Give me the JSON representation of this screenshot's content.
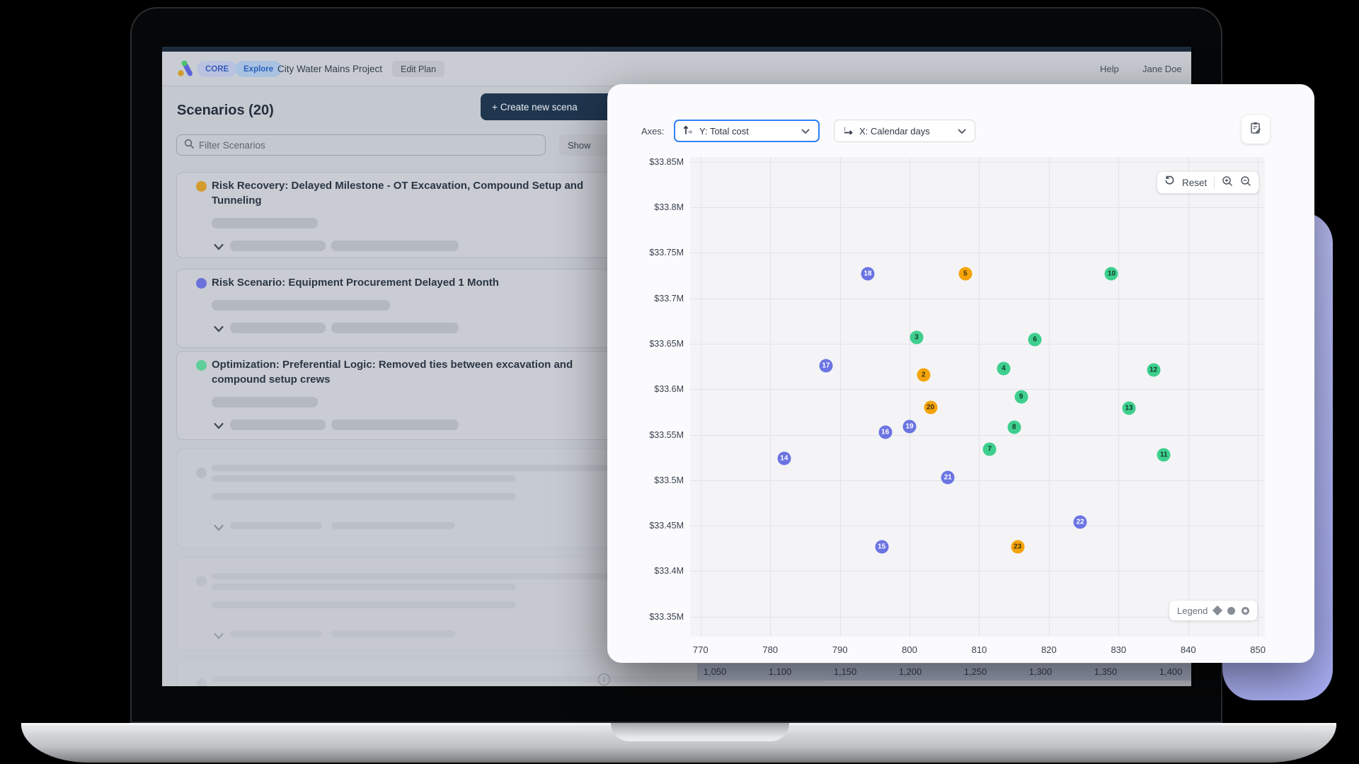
{
  "nav": {
    "core_badge": "CORE",
    "explore_badge": "Explore",
    "project_title": "City Water Mains Project",
    "edit_plan_label": "Edit Plan",
    "help_label": "Help",
    "user_name": "Jane Doe"
  },
  "scenarios_panel": {
    "title": "Scenarios (20)",
    "create_button_label": "Create new scena",
    "filter_placeholder": "Filter Scenarios",
    "show_button_label": "Show",
    "items": [
      {
        "dot_color": "#d49b2e",
        "type": "risk-recovery",
        "title": "Risk Recovery: Delayed Milestone - OT Excavation, Compound Setup and Tunneling",
        "lines": 2
      },
      {
        "dot_color": "#6a71da",
        "type": "risk-scenario",
        "title": "Risk Scenario: Equipment Procurement Delayed 1 Month",
        "lines": 1
      },
      {
        "dot_color": "#5ecf99",
        "type": "optimization",
        "title": "Optimization: Preferential Logic: Removed ties between excavation and compound setup crews",
        "lines": 2
      }
    ],
    "skeleton_cards": 3
  },
  "chart_panel": {
    "axes_label": "Axes:",
    "y_selector_value": "Y: Total cost",
    "x_selector_value": "X: Calendar days",
    "reset_label": "Reset",
    "legend_label": "Legend",
    "accent_blue": "#2f80f8"
  },
  "background_axis_labels": [
    "1,050",
    "1,100",
    "1,150",
    "1,200",
    "1,250",
    "1,300",
    "1,350",
    "1,400"
  ],
  "chart_data": {
    "type": "scatter",
    "xlabel": "Calendar days",
    "ylabel": "Total cost",
    "x_ticks": [
      770,
      780,
      790,
      800,
      810,
      820,
      830,
      840,
      850
    ],
    "y_ticks": [
      {
        "v": 33.85,
        "label": "$33.85M"
      },
      {
        "v": 33.8,
        "label": "$33.8M"
      },
      {
        "v": 33.75,
        "label": "$33.75M"
      },
      {
        "v": 33.7,
        "label": "$33.7M"
      },
      {
        "v": 33.65,
        "label": "$33.65M"
      },
      {
        "v": 33.6,
        "label": "$33.6M"
      },
      {
        "v": 33.55,
        "label": "$33.55M"
      },
      {
        "v": 33.5,
        "label": "$33.5M"
      },
      {
        "v": 33.45,
        "label": "$33.45M"
      },
      {
        "v": 33.4,
        "label": "$33.4M"
      },
      {
        "v": 33.35,
        "label": "$33.35M"
      }
    ],
    "x_range": [
      768.5,
      851.0
    ],
    "y_range": [
      33.328,
      33.8554
    ],
    "grid": true,
    "legend_position": "bottom-right",
    "series": [
      {
        "name": "Risk Recovery",
        "color": "#f4a40a",
        "css": "s-recovery",
        "points": [
          {
            "label": "2",
            "x": 802.0,
            "y": 33.616
          },
          {
            "label": "5",
            "x": 808.0,
            "y": 33.727
          },
          {
            "label": "20",
            "x": 803.0,
            "y": 33.58
          },
          {
            "label": "23",
            "x": 815.5,
            "y": 33.427
          }
        ]
      },
      {
        "name": "Risk Scenario",
        "color": "#6b74e3",
        "css": "s-risk",
        "points": [
          {
            "label": "14",
            "x": 782.0,
            "y": 33.524
          },
          {
            "label": "15",
            "x": 796.0,
            "y": 33.427
          },
          {
            "label": "16",
            "x": 796.5,
            "y": 33.553
          },
          {
            "label": "17",
            "x": 788.0,
            "y": 33.626
          },
          {
            "label": "18",
            "x": 794.0,
            "y": 33.727
          },
          {
            "label": "19",
            "x": 800.0,
            "y": 33.559
          },
          {
            "label": "21",
            "x": 805.5,
            "y": 33.503
          },
          {
            "label": "22",
            "x": 824.5,
            "y": 33.454
          }
        ]
      },
      {
        "name": "Optimization",
        "color": "#3ecf8e",
        "css": "s-optimization",
        "points": [
          {
            "label": "3",
            "x": 801.0,
            "y": 33.657
          },
          {
            "label": "4",
            "x": 813.5,
            "y": 33.623
          },
          {
            "label": "6",
            "x": 818.0,
            "y": 33.655
          },
          {
            "label": "7",
            "x": 811.5,
            "y": 33.534
          },
          {
            "label": "8",
            "x": 815.0,
            "y": 33.558
          },
          {
            "label": "9",
            "x": 816.0,
            "y": 33.592
          },
          {
            "label": "10",
            "x": 829.0,
            "y": 33.727
          },
          {
            "label": "11",
            "x": 836.5,
            "y": 33.528
          },
          {
            "label": "12",
            "x": 835.0,
            "y": 33.621
          },
          {
            "label": "13",
            "x": 831.5,
            "y": 33.579
          }
        ]
      }
    ]
  }
}
